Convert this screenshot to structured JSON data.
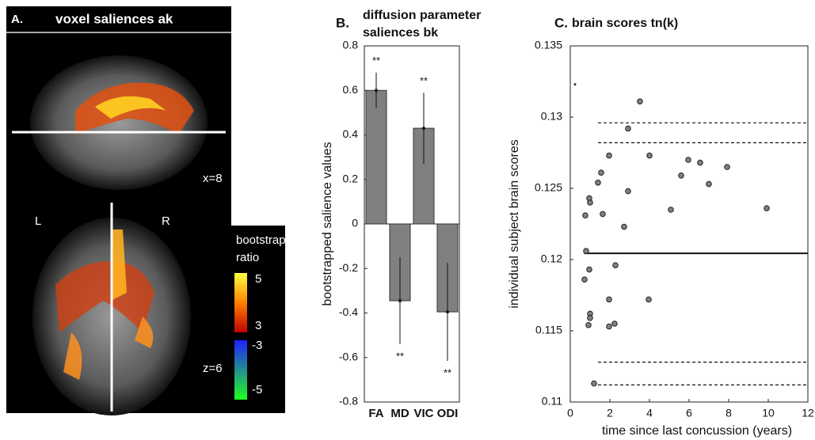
{
  "panel_a": {
    "label": "A.",
    "title": "voxel saliences ak",
    "slice_labels": [
      "x=8",
      "z=6"
    ],
    "orientation": [
      "L",
      "R"
    ],
    "colorbar": {
      "title": [
        "bootstrap",
        "ratio"
      ],
      "ticks": [
        5,
        3,
        -3,
        -5
      ]
    }
  },
  "chart_data": [
    {
      "type": "bar",
      "panel_label": "B.",
      "title": [
        "diffusion parameter",
        "saliences bk"
      ],
      "ylabel": "bootstrapped salience values",
      "categories": [
        "FA",
        "MD",
        "VIC",
        "ODI"
      ],
      "values": [
        0.6,
        -0.345,
        0.43,
        -0.395
      ],
      "errors": [
        0.08,
        0.195,
        0.16,
        0.22
      ],
      "annotations": [
        "**",
        "**",
        "**",
        "**"
      ],
      "color": "#808080",
      "ylim": [
        -0.8,
        0.8
      ],
      "yticks": [
        -0.8,
        -0.6,
        -0.4,
        -0.2,
        0,
        0.2,
        0.4,
        0.6,
        0.8
      ]
    },
    {
      "type": "scatter",
      "panel_label": "C.",
      "title": "brain scores tn(k)",
      "xlabel": "time since last concussion (years)",
      "ylabel": "individual subject brain scores",
      "x": [
        0.24,
        3.52,
        0.76,
        0.96,
        1.0,
        1.4,
        1.56,
        1.64,
        1.96,
        2.28,
        2.92,
        2.92,
        2.72,
        0.8,
        0.72,
        0.96,
        1.0,
        1.0,
        0.92,
        1.96,
        1.96,
        2.24,
        1.2,
        3.96,
        4.0,
        5.08,
        5.6,
        5.96,
        6.56,
        7.0,
        7.92,
        9.92
      ],
      "y": [
        0.1323,
        0.1311,
        0.1231,
        0.1243,
        0.124,
        0.1254,
        0.1261,
        0.1232,
        0.1273,
        0.1196,
        0.1292,
        0.1248,
        0.1223,
        0.1206,
        0.1186,
        0.1193,
        0.1162,
        0.1159,
        0.1154,
        0.1172,
        0.1153,
        0.1155,
        0.1113,
        0.1172,
        0.1273,
        0.1235,
        0.1259,
        0.127,
        0.1268,
        0.1253,
        0.1265,
        0.1236
      ],
      "color": "#808080",
      "hlines": [
        {
          "y": 0.12044,
          "xmin": 0.7,
          "dashed": false
        },
        {
          "y": 0.1296,
          "xmin": 1.4,
          "dashed": true
        },
        {
          "y": 0.1282,
          "xmin": 1.4,
          "dashed": true
        },
        {
          "y": 0.1128,
          "xmin": 1.4,
          "dashed": true
        },
        {
          "y": 0.1112,
          "xmin": 1.4,
          "dashed": true
        }
      ],
      "xlim": [
        0,
        12
      ],
      "xticks": [
        0,
        2,
        4,
        6,
        8,
        10,
        12
      ],
      "ylim": [
        0.11,
        0.135
      ],
      "yticks": [
        0.11,
        0.115,
        0.12,
        0.125,
        0.13,
        0.135
      ]
    }
  ]
}
